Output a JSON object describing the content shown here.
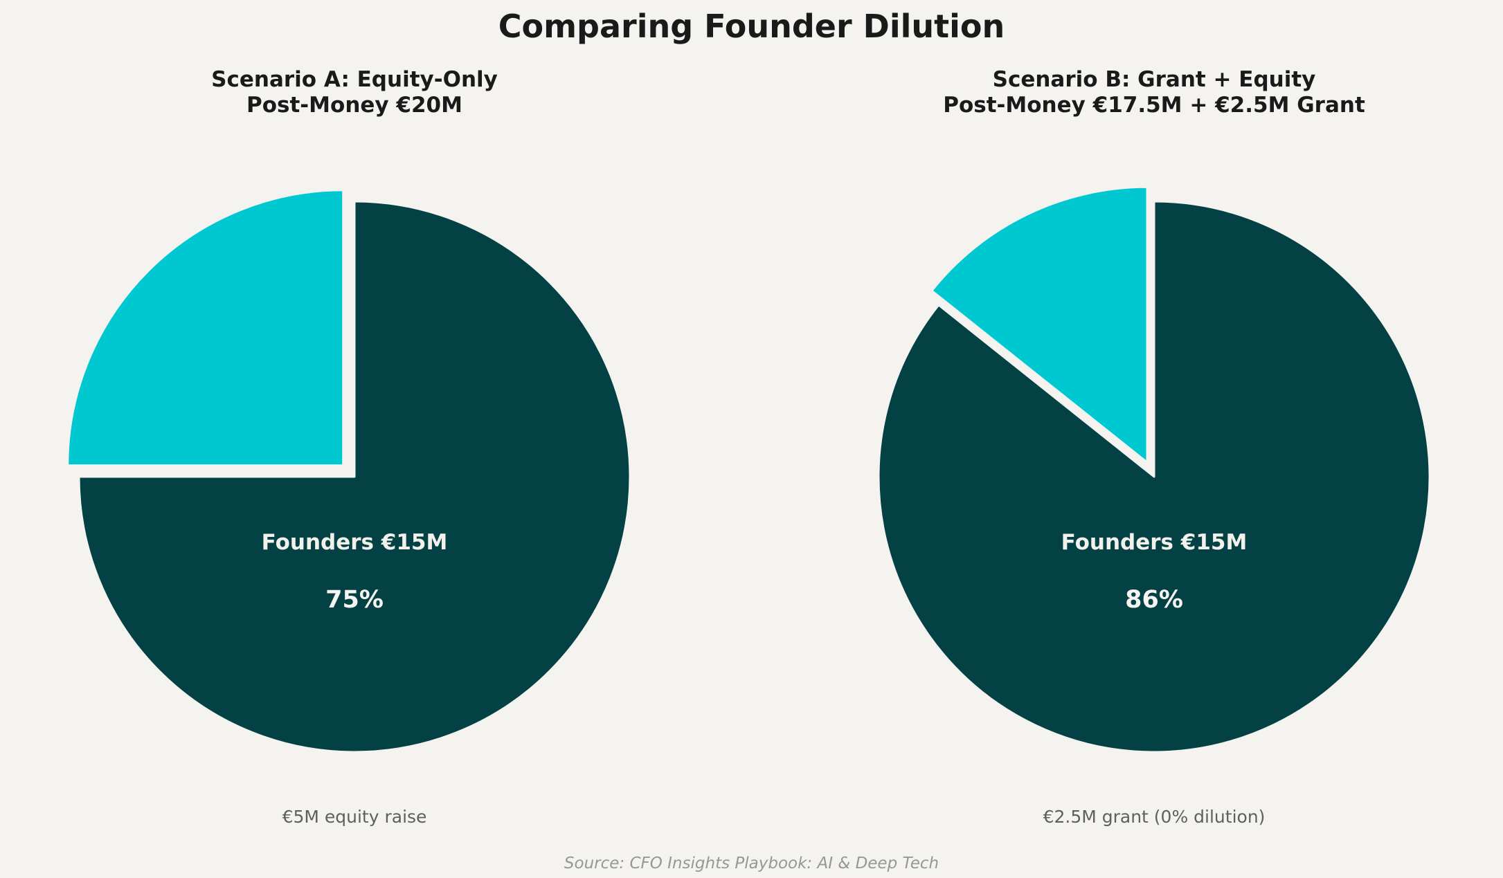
{
  "title": "Comparing Founder Dilution",
  "source": "Source: CFO Insights Playbook: AI & Deep Tech",
  "colors": {
    "background": "#f4f3f0",
    "founders_slice_dark_teal": "#034145",
    "secondary_slice_cyan": "#00c8d1",
    "heading_text": "#1a1a1a",
    "caption_text": "#5f5f5f",
    "source_text": "#979797",
    "pie_label_text": "#f2f1ec"
  },
  "chart_data": [
    {
      "type": "pie",
      "subtitle": [
        "Scenario A: Equity-Only",
        "Post-Money €20M"
      ],
      "values_unit": "EUR millions",
      "start_angle_deg": 90,
      "direction": "clockwise",
      "slices": [
        {
          "label": "Founders",
          "value": 15,
          "pct_shown": "75%",
          "color": "#034145",
          "exploded": false
        },
        {
          "label": "Equity raise",
          "value": 5,
          "pct_shown": "",
          "color": "#00c8d1",
          "exploded": true
        }
      ],
      "center_label": "Founders €15M",
      "center_pct": "75%",
      "caption": "€5M equity raise"
    },
    {
      "type": "pie",
      "subtitle": [
        "Scenario B: Grant + Equity",
        "Post-Money €17.5M + €2.5M Grant"
      ],
      "values_unit": "EUR millions",
      "start_angle_deg": 90,
      "direction": "clockwise",
      "slices": [
        {
          "label": "Founders",
          "value": 15,
          "pct_shown": "86%",
          "color": "#034145",
          "exploded": false
        },
        {
          "label": "Grant",
          "value": 2.5,
          "pct_shown": "",
          "color": "#00c8d1",
          "exploded": true
        }
      ],
      "center_label": "Founders €15M",
      "center_pct": "86%",
      "caption": "€2.5M grant (0% dilution)"
    }
  ]
}
